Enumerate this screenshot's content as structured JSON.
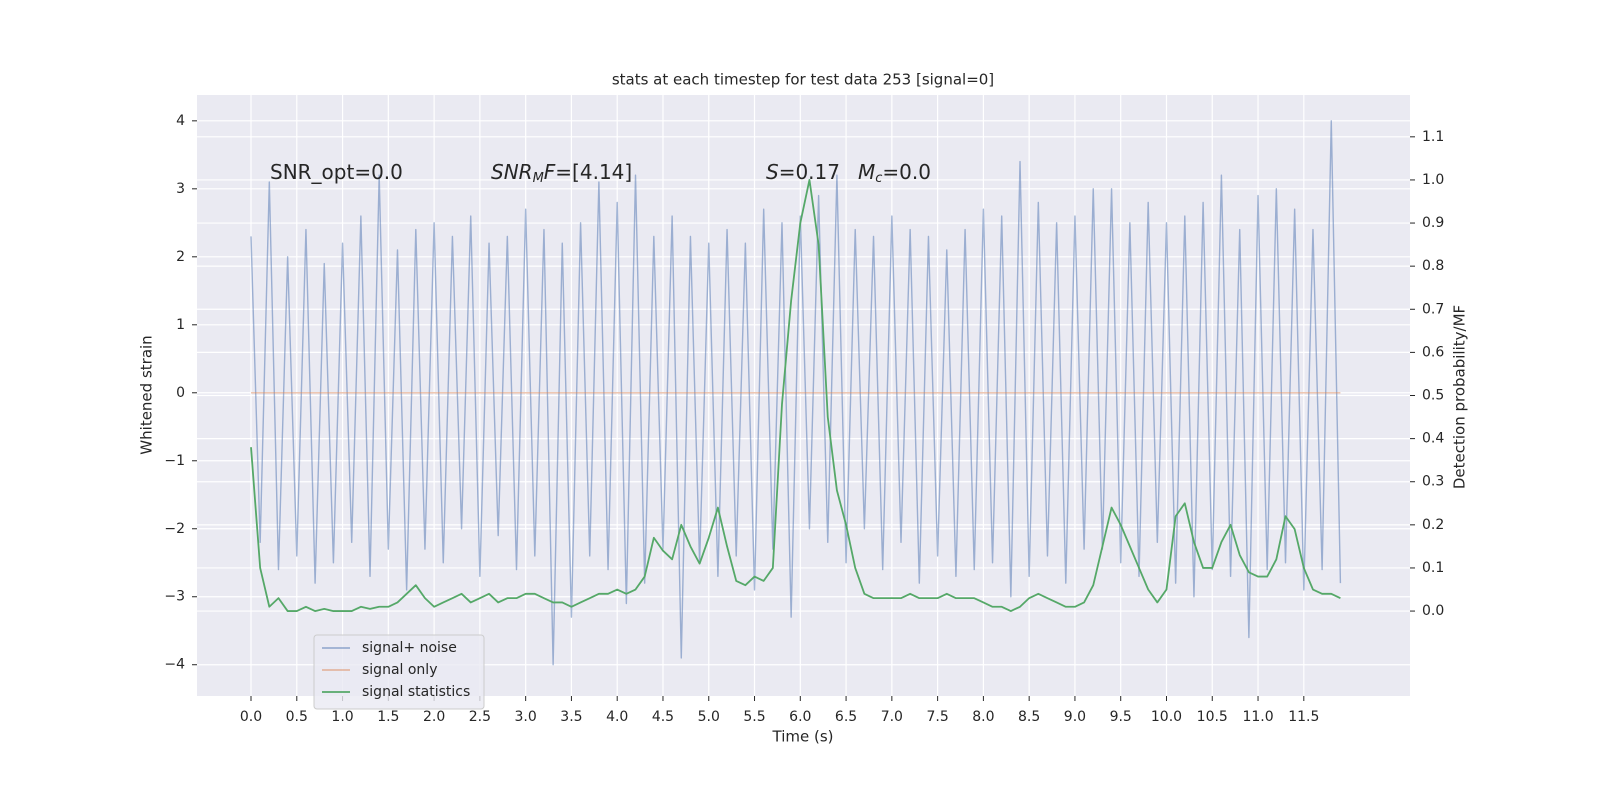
{
  "chart_data": {
    "type": "line",
    "title": "stats at each timestep for test data 253 [signal=0]",
    "xlabel": "Time (s)",
    "ylabel": "Whitened strain",
    "y2label": "Detection probability/MF",
    "annotations": [
      [
        "SNR_opt=0.0"
      ],
      [
        "SNR",
        "M",
        "F",
        "=[4.14]"
      ],
      [
        "S",
        "=0.17"
      ],
      [
        "M",
        "c",
        "=0.0"
      ]
    ],
    "x": [
      0,
      0.1,
      0.2,
      0.3,
      0.4,
      0.5,
      0.6,
      0.7,
      0.8,
      0.9,
      1,
      1.1,
      1.2,
      1.3,
      1.4,
      1.5,
      1.6,
      1.7,
      1.8,
      1.9,
      2,
      2.1,
      2.2,
      2.3,
      2.4,
      2.5,
      2.6,
      2.7,
      2.8,
      2.9,
      3,
      3.1,
      3.2,
      3.3,
      3.4,
      3.5,
      3.6,
      3.7,
      3.8,
      3.9,
      4,
      4.1,
      4.2,
      4.3,
      4.4,
      4.5,
      4.6,
      4.7,
      4.8,
      4.9,
      5,
      5.1,
      5.2,
      5.3,
      5.4,
      5.5,
      5.6,
      5.7,
      5.8,
      5.9,
      6,
      6.1,
      6.2,
      6.3,
      6.4,
      6.5,
      6.6,
      6.7,
      6.8,
      6.9,
      7,
      7.1,
      7.2,
      7.3,
      7.4,
      7.5,
      7.6,
      7.7,
      7.8,
      7.9,
      8,
      8.1,
      8.2,
      8.3,
      8.4,
      8.5,
      8.6,
      8.7,
      8.8,
      8.9,
      9,
      9.1,
      9.2,
      9.3,
      9.4,
      9.5,
      9.6,
      9.7,
      9.8,
      9.9,
      10,
      10.1,
      10.2,
      10.3,
      10.4,
      10.5,
      10.6,
      10.7,
      10.8,
      10.9,
      11,
      11.1,
      11.2,
      11.3,
      11.4,
      11.5,
      11.6,
      11.7,
      11.8,
      11.9
    ],
    "series": [
      {
        "name": "signal+ noise",
        "color": "#4c72b0",
        "alpha": 0.5,
        "values": [
          2.3,
          -2.2,
          3.1,
          -2.6,
          2.0,
          -2.4,
          2.4,
          -2.8,
          1.9,
          -2.5,
          2.2,
          -2.2,
          2.6,
          -2.7,
          3.2,
          -2.3,
          2.1,
          -2.9,
          2.4,
          -2.3,
          2.5,
          -2.5,
          2.3,
          -2.0,
          2.6,
          -2.7,
          2.2,
          -2.1,
          2.3,
          -2.6,
          2.7,
          -2.4,
          2.4,
          -4.0,
          2.2,
          -3.3,
          2.5,
          -2.4,
          3.1,
          -2.6,
          2.8,
          -3.1,
          3.2,
          -2.8,
          2.3,
          -2.3,
          2.6,
          -3.9,
          2.3,
          -2.5,
          2.2,
          -2.7,
          2.4,
          -2.4,
          2.2,
          -2.9,
          2.7,
          -2.3,
          2.5,
          -3.3,
          2.6,
          -2.0,
          2.9,
          -2.2,
          3.2,
          -2.5,
          2.4,
          -2.0,
          2.3,
          -2.6,
          2.6,
          -2.2,
          2.4,
          -2.8,
          2.3,
          -2.4,
          2.1,
          -2.7,
          2.4,
          -2.6,
          2.7,
          -2.5,
          2.6,
          -3.0,
          3.4,
          -2.7,
          2.8,
          -2.4,
          2.5,
          -2.8,
          2.6,
          -2.3,
          3.0,
          -2.3,
          3.0,
          -2.5,
          2.5,
          -2.7,
          2.8,
          -2.2,
          2.5,
          -2.8,
          2.6,
          -3.0,
          2.8,
          -2.6,
          3.2,
          -2.7,
          2.4,
          -3.6,
          2.9,
          -2.6,
          3.0,
          -2.5,
          2.7,
          -2.9,
          2.4,
          -2.6,
          4.0,
          -2.8
        ]
      },
      {
        "name": "signal only",
        "color": "#dd8452",
        "alpha": 0.5,
        "values": [
          0,
          0,
          0,
          0,
          0,
          0,
          0,
          0,
          0,
          0,
          0,
          0,
          0,
          0,
          0,
          0,
          0,
          0,
          0,
          0,
          0,
          0,
          0,
          0,
          0,
          0,
          0,
          0,
          0,
          0,
          0,
          0,
          0,
          0,
          0,
          0,
          0,
          0,
          0,
          0,
          0,
          0,
          0,
          0,
          0,
          0,
          0,
          0,
          0,
          0,
          0,
          0,
          0,
          0,
          0,
          0,
          0,
          0,
          0,
          0,
          0,
          0,
          0,
          0,
          0,
          0,
          0,
          0,
          0,
          0,
          0,
          0,
          0,
          0,
          0,
          0,
          0,
          0,
          0,
          0,
          0,
          0,
          0,
          0,
          0,
          0,
          0,
          0,
          0,
          0,
          0,
          0,
          0,
          0,
          0,
          0,
          0,
          0,
          0,
          0,
          0,
          0,
          0,
          0,
          0,
          0,
          0,
          0,
          0,
          0,
          0,
          0,
          0,
          0,
          0,
          0,
          0,
          0,
          0,
          0
        ]
      },
      {
        "name": "signal statistics",
        "color": "#55a868",
        "alpha": 1,
        "axis": "y2",
        "values": [
          0.38,
          0.1,
          0.01,
          0.03,
          0.0,
          0.0,
          0.01,
          0.0,
          0.005,
          0.0,
          0.0,
          0.0,
          0.01,
          0.005,
          0.01,
          0.01,
          0.02,
          0.04,
          0.06,
          0.03,
          0.01,
          0.02,
          0.03,
          0.04,
          0.02,
          0.03,
          0.04,
          0.02,
          0.03,
          0.03,
          0.04,
          0.04,
          0.03,
          0.02,
          0.02,
          0.01,
          0.02,
          0.03,
          0.04,
          0.04,
          0.05,
          0.04,
          0.05,
          0.08,
          0.17,
          0.14,
          0.12,
          0.2,
          0.15,
          0.11,
          0.17,
          0.24,
          0.15,
          0.07,
          0.06,
          0.08,
          0.07,
          0.1,
          0.48,
          0.72,
          0.9,
          1.0,
          0.85,
          0.45,
          0.28,
          0.2,
          0.1,
          0.04,
          0.03,
          0.03,
          0.03,
          0.03,
          0.04,
          0.03,
          0.03,
          0.03,
          0.04,
          0.03,
          0.03,
          0.03,
          0.02,
          0.01,
          0.01,
          0.0,
          0.01,
          0.03,
          0.04,
          0.03,
          0.02,
          0.01,
          0.01,
          0.02,
          0.06,
          0.15,
          0.24,
          0.2,
          0.15,
          0.1,
          0.05,
          0.02,
          0.05,
          0.22,
          0.25,
          0.16,
          0.1,
          0.1,
          0.16,
          0.2,
          0.13,
          0.09,
          0.08,
          0.08,
          0.12,
          0.22,
          0.19,
          0.1,
          0.05,
          0.04,
          0.04,
          0.03
        ]
      }
    ],
    "xlim": [
      -0.59,
      12.66
    ],
    "xticks": [
      {
        "value": 0,
        "label": "0.0"
      },
      0.5,
      {
        "value": 1,
        "label": "1.0"
      },
      1.5,
      {
        "value": 2,
        "label": "2.0"
      },
      2.5,
      {
        "value": 3,
        "label": "3.0"
      },
      3.5,
      {
        "value": 4,
        "label": "4.0"
      },
      4.5,
      {
        "value": 5,
        "label": "5.0"
      },
      5.5,
      {
        "value": 6,
        "label": "6.0"
      },
      6.5,
      {
        "value": 7,
        "label": "7.0"
      },
      7.5,
      {
        "value": 8,
        "label": "8.0"
      },
      8.5,
      {
        "value": 9,
        "label": "9.0"
      },
      9.5,
      {
        "value": 10,
        "label": "10.0"
      },
      10.5,
      {
        "value": 11,
        "label": "11.0"
      },
      11.5
    ],
    "ylim": [
      -4.46,
      4.38
    ],
    "yticks": [
      {
        "value": -4,
        "label": "−4"
      },
      {
        "value": -3,
        "label": "−3"
      },
      {
        "value": -2,
        "label": "−2"
      },
      {
        "value": -1,
        "label": "−1"
      },
      0,
      1,
      2,
      3,
      4
    ],
    "y2lim": [
      -0.197,
      1.197
    ],
    "y2ticks": [
      {
        "value": 0,
        "label": "0.0"
      },
      0.1,
      0.2,
      0.3,
      0.4,
      0.5,
      0.6,
      0.7,
      0.8,
      0.9,
      {
        "value": 1,
        "label": "1.0"
      },
      1.1
    ],
    "grid": true,
    "legend": "lower left"
  }
}
